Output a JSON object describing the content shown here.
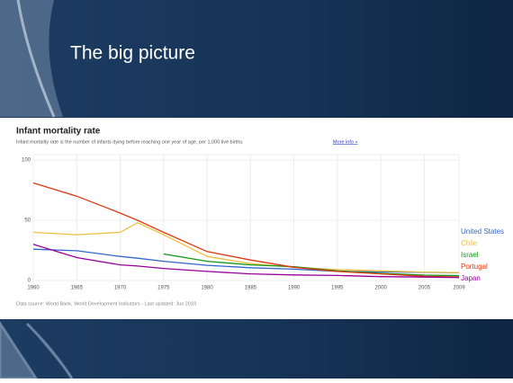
{
  "slide_title": "The big picture",
  "chart_data": {
    "type": "line",
    "title": "Infant mortality rate",
    "subtitle": "Infant mortality rate is the number of infants dying before reaching one year of age, per 1,000 live births.",
    "link": "More info »",
    "source": "Data source: World Bank, World Development Indicators - Last updated: Jun 2010",
    "x": [
      1960,
      1965,
      1970,
      1972,
      1975,
      1980,
      1985,
      1990,
      1995,
      2000,
      2005,
      2009
    ],
    "xlim": [
      1960,
      2009
    ],
    "xticks": [
      1960,
      1965,
      1970,
      1975,
      1980,
      1985,
      1990,
      1995,
      2000,
      2005,
      2009
    ],
    "ylim": [
      0,
      100
    ],
    "yticks": [
      0,
      50,
      100
    ],
    "grid": true,
    "series": [
      {
        "name": "United States",
        "color": "#3366cc",
        "values": [
          26,
          24.7,
          20,
          18.5,
          16,
          12.6,
          10.6,
          9.4,
          7.6,
          7.1,
          6.8,
          6.5
        ]
      },
      {
        "name": "Chile",
        "color": "#f0c040",
        "values": [
          40,
          38,
          40,
          48,
          38,
          20,
          14,
          11,
          9,
          8,
          7,
          6.5
        ]
      },
      {
        "name": "Israel",
        "color": "#109618",
        "values": [
          null,
          null,
          null,
          null,
          22,
          16,
          13,
          11.5,
          8,
          6,
          4.5,
          4
        ]
      },
      {
        "name": "Portugal",
        "color": "#dc3912",
        "values": [
          81,
          70,
          56,
          50,
          40,
          24,
          17,
          11,
          7.5,
          5.5,
          3.5,
          3
        ]
      },
      {
        "name": "Japan",
        "color": "#990099",
        "values": [
          30,
          19,
          13,
          12,
          10,
          7.5,
          5.5,
          4.6,
          4.2,
          3.2,
          2.8,
          2.4
        ]
      }
    ]
  }
}
